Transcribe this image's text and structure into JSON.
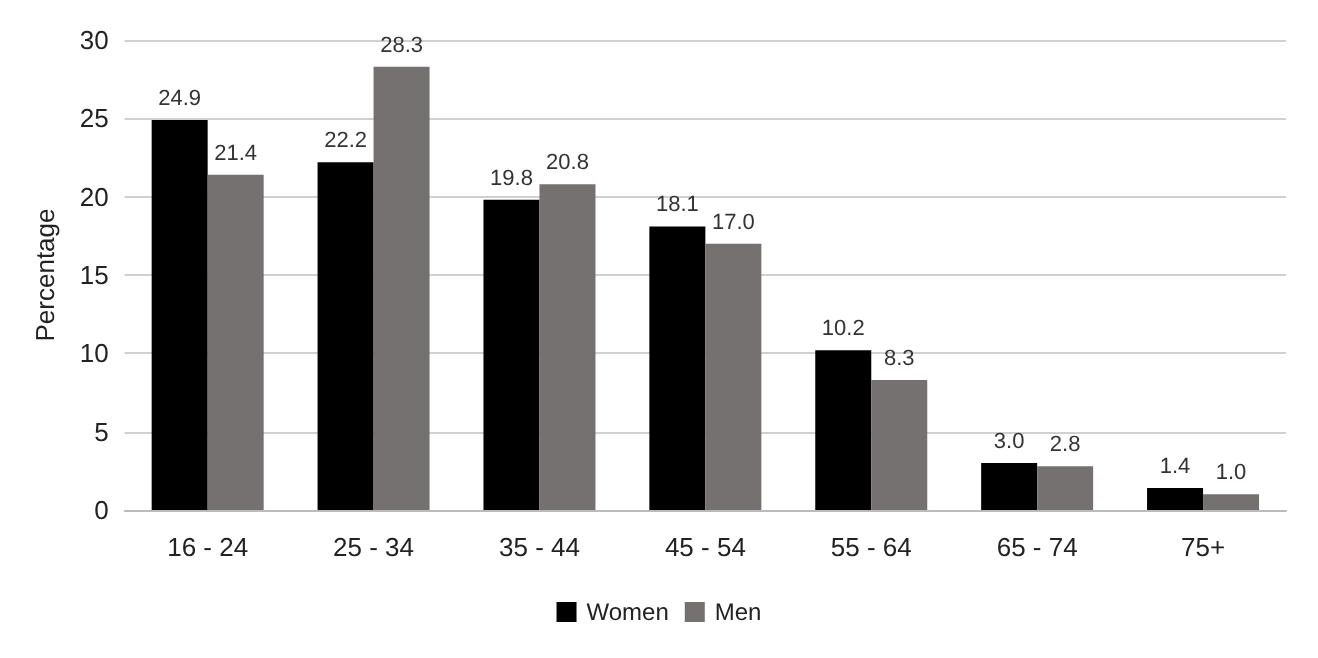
{
  "chart_data": {
    "type": "bar",
    "ylabel": "Percentage",
    "categories": [
      "16 - 24",
      "25 - 34",
      "35 - 44",
      "45 - 54",
      "55 - 64",
      "65 - 74",
      "75+"
    ],
    "series": [
      {
        "name": "Women",
        "color": "#000000",
        "values": [
          24.9,
          22.2,
          19.8,
          18.1,
          10.2,
          3.0,
          1.4
        ],
        "value_labels": [
          "24.9",
          "22.2",
          "19.8",
          "18.1",
          "10.2",
          "3.0",
          "1.4"
        ]
      },
      {
        "name": "Men",
        "color": "#767171",
        "values": [
          21.4,
          28.3,
          20.8,
          17.0,
          8.3,
          2.8,
          1.0
        ],
        "value_labels": [
          "21.4",
          "28.3",
          "20.8",
          "17.0",
          "8.3",
          "2.8",
          "1.0"
        ]
      }
    ],
    "ylim": [
      0,
      30
    ],
    "yticks": [
      0,
      5,
      10,
      15,
      20,
      25,
      30
    ],
    "grid": "y",
    "legend": "bottom"
  }
}
